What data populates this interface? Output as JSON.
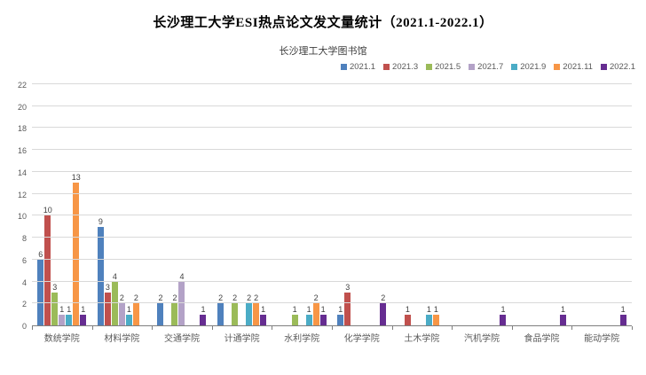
{
  "header": {
    "title": "长沙理工大学ESI热点论文发文量统计（2021.1-2022.1）",
    "subtitle": "长沙理工大学图书馆"
  },
  "chart_data": {
    "type": "bar",
    "title": "长沙理工大学ESI热点论文发文量统计（2021.1-2022.1）",
    "subtitle": "长沙理工大学图书馆",
    "categories": [
      "数统学院",
      "材料学院",
      "交通学院",
      "计通学院",
      "水利学院",
      "化学学院",
      "土木学院",
      "汽机学院",
      "食品学院",
      "能动学院"
    ],
    "series": [
      {
        "name": "2021.1",
        "color": "#4f81bd",
        "values": [
          6,
          9,
          2,
          2,
          0,
          1,
          0,
          0,
          0,
          0
        ]
      },
      {
        "name": "2021.3",
        "color": "#c0504d",
        "values": [
          10,
          3,
          0,
          0,
          0,
          3,
          1,
          0,
          0,
          0
        ]
      },
      {
        "name": "2021.5",
        "color": "#9bbb59",
        "values": [
          3,
          4,
          2,
          2,
          1,
          0,
          0,
          0,
          0,
          0
        ]
      },
      {
        "name": "2021.7",
        "color": "#b3a2c7",
        "values": [
          1,
          2,
          4,
          0,
          0,
          0,
          0,
          0,
          0,
          0
        ]
      },
      {
        "name": "2021.9",
        "color": "#4bacc6",
        "values": [
          1,
          1,
          0,
          2,
          1,
          0,
          1,
          0,
          0,
          0
        ]
      },
      {
        "name": "2021.11",
        "color": "#f79646",
        "values": [
          13,
          2,
          0,
          2,
          2,
          0,
          1,
          0,
          0,
          0
        ]
      },
      {
        "name": "2022.1",
        "color": "#662d91",
        "values": [
          1,
          0,
          1,
          1,
          1,
          2,
          0,
          1,
          1,
          1
        ]
      }
    ],
    "ylim": [
      0,
      22
    ],
    "yticks": [
      0,
      2,
      4,
      6,
      8,
      10,
      12,
      14,
      16,
      18,
      20,
      22
    ],
    "grid": true,
    "legend_position": "top-right",
    "show_value_labels": true,
    "gridline_color": "#d9d9d9",
    "axis_color": "#7f7f7f",
    "label_color": "#595959"
  }
}
